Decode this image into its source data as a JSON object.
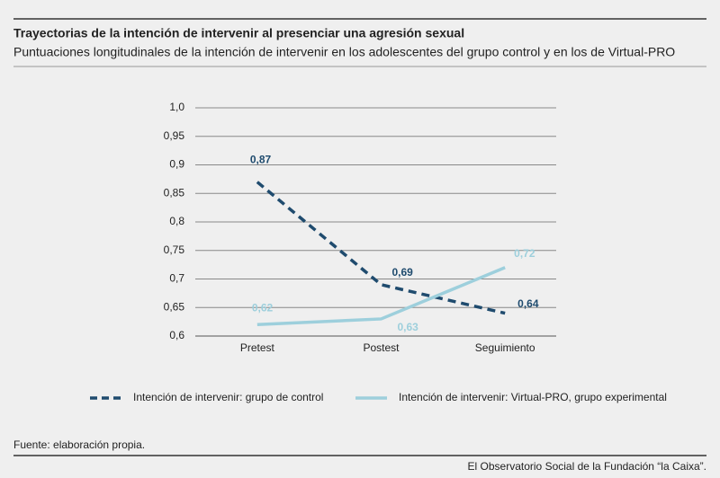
{
  "chart_data": {
    "type": "line",
    "title": "Trayectorias de la intención de intervenir al presenciar una agresión sexual",
    "subtitle": "Puntuaciones longitudinales de la intención de intervenir en los adolescentes del grupo control y en los de Virtual-PRO",
    "categories": [
      "Pretest",
      "Postest",
      "Seguimiento"
    ],
    "series": [
      {
        "name": "Intención de intervenir: grupo de control",
        "color": "#1f4b6e",
        "dashed": true,
        "values": [
          0.87,
          0.69,
          0.64
        ],
        "value_labels": [
          "0,87",
          "0,69",
          "0,64"
        ]
      },
      {
        "name": "Intención de intervenir: Virtual-PRO, grupo experimental",
        "color": "#9dcfdc",
        "dashed": false,
        "values": [
          0.62,
          0.63,
          0.72
        ],
        "value_labels": [
          "0,62",
          "0,63",
          "0,72"
        ]
      }
    ],
    "ylim": [
      0.6,
      1.0
    ],
    "yticks": [
      {
        "value": 0.6,
        "label": "0,6"
      },
      {
        "value": 0.65,
        "label": "0,65"
      },
      {
        "value": 0.7,
        "label": "0,7"
      },
      {
        "value": 0.75,
        "label": "0,75"
      },
      {
        "value": 0.8,
        "label": "0,8"
      },
      {
        "value": 0.85,
        "label": "0,85"
      },
      {
        "value": 0.9,
        "label": "0,9"
      },
      {
        "value": 0.95,
        "label": "0,95"
      },
      {
        "value": 1.0,
        "label": "1,0"
      }
    ],
    "grid": true,
    "source": "Fuente: elaboración propia.",
    "footer": "El Observatorio Social de la Fundación “la Caixa”."
  }
}
